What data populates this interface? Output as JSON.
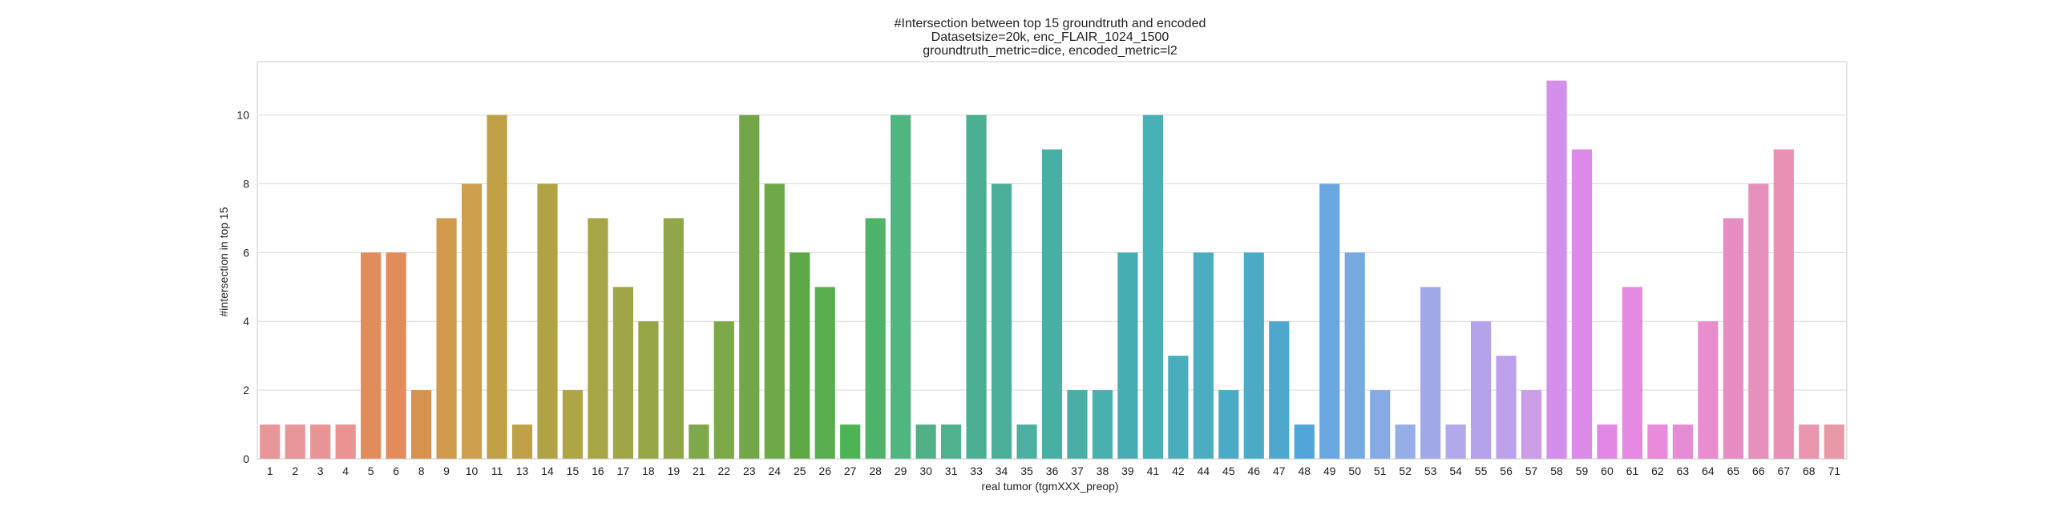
{
  "chart_data": {
    "type": "bar",
    "title_lines": [
      "#Intersection between top 15 groundtruth and encoded",
      "Datasetsize=20k, enc_FLAIR_1024_1500",
      "groundtruth_metric=dice, encoded_metric=l2"
    ],
    "xlabel": "real tumor (tgmXXX_preop)",
    "ylabel": "#intersection in top 15",
    "ylim": [
      0,
      11.55
    ],
    "yticks": [
      0,
      2,
      4,
      6,
      8,
      10
    ],
    "grid": true,
    "categories": [
      "1",
      "2",
      "3",
      "4",
      "5",
      "6",
      "8",
      "9",
      "10",
      "11",
      "13",
      "14",
      "15",
      "16",
      "17",
      "18",
      "19",
      "21",
      "22",
      "23",
      "24",
      "25",
      "26",
      "27",
      "28",
      "29",
      "30",
      "31",
      "33",
      "34",
      "35",
      "36",
      "37",
      "38",
      "39",
      "41",
      "42",
      "44",
      "45",
      "46",
      "47",
      "48",
      "49",
      "50",
      "51",
      "52",
      "53",
      "54",
      "55",
      "56",
      "57",
      "58",
      "59",
      "60",
      "61",
      "62",
      "63",
      "64",
      "65",
      "66",
      "67",
      "68",
      "71"
    ],
    "values": [
      1,
      1,
      1,
      1,
      6,
      6,
      2,
      7,
      8,
      10,
      1,
      8,
      2,
      7,
      5,
      4,
      7,
      1,
      4,
      10,
      8,
      6,
      5,
      1,
      7,
      10,
      1,
      1,
      10,
      8,
      1,
      9,
      2,
      2,
      6,
      10,
      3,
      6,
      2,
      6,
      4,
      1,
      8,
      6,
      2,
      1,
      5,
      1,
      4,
      3,
      2,
      11,
      9,
      1,
      5,
      1,
      1,
      4,
      7,
      8,
      9,
      1,
      1
    ],
    "colors": [
      "#e9969a",
      "#e9969b",
      "#e99495",
      "#e99392",
      "#e38c5b",
      "#e38c5b",
      "#d6924f",
      "#d19b4e",
      "#cea04e",
      "#bfa046",
      "#c0a147",
      "#b0a345",
      "#b0a545",
      "#a6a647",
      "#9fa648",
      "#97a647",
      "#91a54a",
      "#7ea84c",
      "#7ba948",
      "#71a748",
      "#6caa47",
      "#5ea945",
      "#58ae4f",
      "#4db456",
      "#4fb46a",
      "#4fb581",
      "#50b189",
      "#4fb18d",
      "#4aaf93",
      "#4baf9a",
      "#4caf9f",
      "#49afa3",
      "#4aaea6",
      "#47afac",
      "#46aeb2",
      "#48b1b6",
      "#49aebb",
      "#4aaec0",
      "#4aacc4",
      "#4babc7",
      "#4ea7cd",
      "#52a5d8",
      "#6aa7e0",
      "#76abe2",
      "#87aae4",
      "#96aee7",
      "#a2a9e9",
      "#b0aaea",
      "#b5a3ea",
      "#bda0ea",
      "#cc9de9",
      "#d38fea",
      "#dc8ce8",
      "#e288e4",
      "#e48ae0",
      "#e88bdb",
      "#e58cd5",
      "#e88dce",
      "#e68dc4",
      "#e890bc",
      "#e791b5",
      "#e896ae",
      "#e998a7"
    ]
  }
}
